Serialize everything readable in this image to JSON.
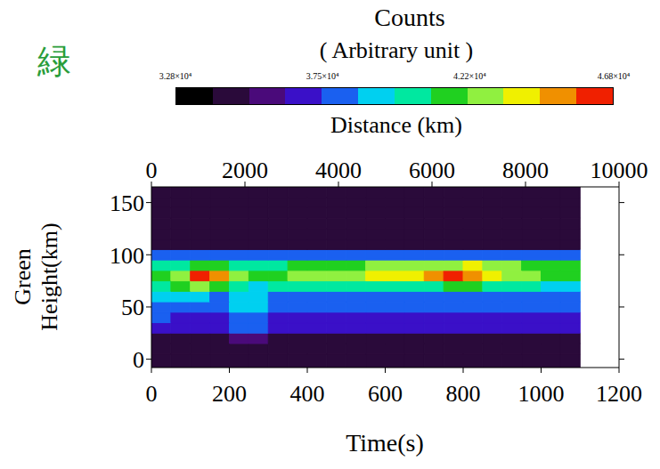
{
  "chart_data": {
    "type": "heatmap",
    "annotation": "緑",
    "colorbar_title": "Counts",
    "colorbar_unit": "( Arbitrary unit )",
    "colorbar_range": [
      32800,
      46800
    ],
    "colorbar_ticks": [
      {
        "value": 32800,
        "label": "3.28×10⁴"
      },
      {
        "value": 37500,
        "label": "3.75×10⁴"
      },
      {
        "value": 42200,
        "label": "4.22×10⁴"
      },
      {
        "value": 46800,
        "label": "4.68×10⁴"
      }
    ],
    "x2label": "Distance (km)",
    "x2lim": [
      0,
      10000
    ],
    "x2ticks": [
      0,
      2000,
      4000,
      6000,
      8000,
      10000
    ],
    "panel_label": "Green",
    "ylabel": "Height(km)",
    "xlabel": "Time(s)",
    "xlim": [
      0,
      1200
    ],
    "xticks": [
      0,
      200,
      400,
      600,
      800,
      1000,
      1200
    ],
    "ylim": [
      -8,
      165
    ],
    "yticks": [
      0,
      50,
      100,
      150
    ],
    "x_bins": [
      0,
      50,
      100,
      150,
      200,
      250,
      300,
      350,
      400,
      450,
      500,
      550,
      600,
      650,
      700,
      750,
      800,
      850,
      900,
      950,
      1000,
      1050,
      1100
    ],
    "y_bins": [
      -10,
      5,
      15,
      25,
      35,
      45,
      55,
      65,
      75,
      85,
      95,
      105,
      115,
      125,
      135,
      145,
      155,
      165
    ],
    "cells": [
      [
        34600,
        34600,
        34600,
        34600,
        34600,
        34600,
        34600,
        34600,
        34600,
        34600,
        34600,
        34600,
        34600,
        34600,
        34600,
        34600,
        34600,
        34600,
        34600,
        34600,
        34600,
        34600
      ],
      [
        34700,
        34700,
        34700,
        34700,
        34700,
        34700,
        34700,
        34700,
        34700,
        34700,
        34700,
        34700,
        34700,
        34700,
        34700,
        34700,
        34700,
        34700,
        34700,
        34700,
        34700,
        34700
      ],
      [
        35000,
        35000,
        35000,
        35000,
        35500,
        36000,
        35000,
        35000,
        35000,
        35000,
        35000,
        35000,
        35000,
        35000,
        35000,
        35000,
        35000,
        35000,
        35000,
        35000,
        35000,
        35000
      ],
      [
        36500,
        36500,
        36500,
        36500,
        37500,
        37500,
        36500,
        36500,
        36500,
        36500,
        36500,
        36500,
        36500,
        36500,
        36500,
        36500,
        36500,
        36500,
        36500,
        36500,
        36500,
        36500
      ],
      [
        37500,
        37000,
        37000,
        37000,
        38500,
        38500,
        37000,
        37000,
        37000,
        37000,
        37000,
        37000,
        37000,
        37000,
        37000,
        37000,
        37000,
        37000,
        37000,
        37000,
        37000,
        37000
      ],
      [
        38500,
        38000,
        37500,
        37500,
        39000,
        39000,
        37500,
        37500,
        37500,
        37500,
        37500,
        37500,
        37500,
        37500,
        37500,
        37500,
        37500,
        37500,
        37500,
        37500,
        37500,
        37500
      ],
      [
        39000,
        39500,
        39000,
        38500,
        39500,
        39000,
        38500,
        38500,
        38500,
        38500,
        38500,
        38500,
        38500,
        38500,
        38500,
        38500,
        38500,
        38500,
        38500,
        38000,
        38000,
        38000
      ],
      [
        40000,
        41000,
        42500,
        41500,
        40000,
        39500,
        40000,
        40000,
        40000,
        40000,
        40000,
        40500,
        40500,
        40500,
        40500,
        41000,
        41000,
        40500,
        40000,
        40000,
        39500,
        39500
      ],
      [
        41000,
        43000,
        46000,
        45500,
        42500,
        41500,
        42000,
        42500,
        42500,
        42500,
        43000,
        43500,
        44000,
        44000,
        44500,
        46000,
        45500,
        44000,
        43000,
        42500,
        42000,
        41500
      ],
      [
        40000,
        40500,
        41500,
        41500,
        40500,
        40000,
        40500,
        41000,
        41500,
        41500,
        42000,
        42500,
        43000,
        42500,
        42500,
        43000,
        43500,
        43000,
        42500,
        42000,
        41500,
        41000
      ],
      [
        37500,
        37500,
        37500,
        37500,
        37500,
        37500,
        37500,
        37500,
        37500,
        37500,
        37500,
        38000,
        38000,
        38000,
        38000,
        38000,
        38000,
        38000,
        37500,
        37500,
        37500,
        37500
      ],
      [
        34600,
        34600,
        34600,
        34600,
        34600,
        34600,
        34600,
        34600,
        34600,
        34600,
        34600,
        34600,
        34600,
        34600,
        34600,
        34600,
        34600,
        34600,
        34600,
        34600,
        34600,
        34600
      ],
      [
        34400,
        34400,
        34400,
        34400,
        34400,
        34400,
        34400,
        34400,
        34400,
        34400,
        34400,
        34400,
        34400,
        34400,
        34400,
        34400,
        34400,
        34400,
        34400,
        34400,
        34400,
        34400
      ],
      [
        34300,
        34300,
        34300,
        34300,
        34300,
        34300,
        34300,
        34300,
        34300,
        34300,
        34300,
        34300,
        34300,
        34300,
        34300,
        34300,
        34300,
        34300,
        34300,
        34300,
        34300,
        34300
      ],
      [
        34300,
        34300,
        34300,
        34300,
        34300,
        34300,
        34300,
        34300,
        34300,
        34300,
        34300,
        34300,
        34300,
        34300,
        34300,
        34300,
        34300,
        34300,
        34300,
        34300,
        34300,
        34300
      ],
      [
        34300,
        34300,
        34300,
        34300,
        34300,
        34300,
        34300,
        34300,
        34300,
        34300,
        34300,
        34300,
        34300,
        34300,
        34300,
        34300,
        34300,
        34300,
        34300,
        34300,
        34300,
        34300
      ],
      [
        34300,
        34300,
        34300,
        34300,
        34300,
        34300,
        34300,
        34300,
        34300,
        34300,
        34300,
        34300,
        34300,
        34300,
        34300,
        34300,
        34300,
        34300,
        34300,
        34300,
        34300,
        34300
      ]
    ]
  }
}
